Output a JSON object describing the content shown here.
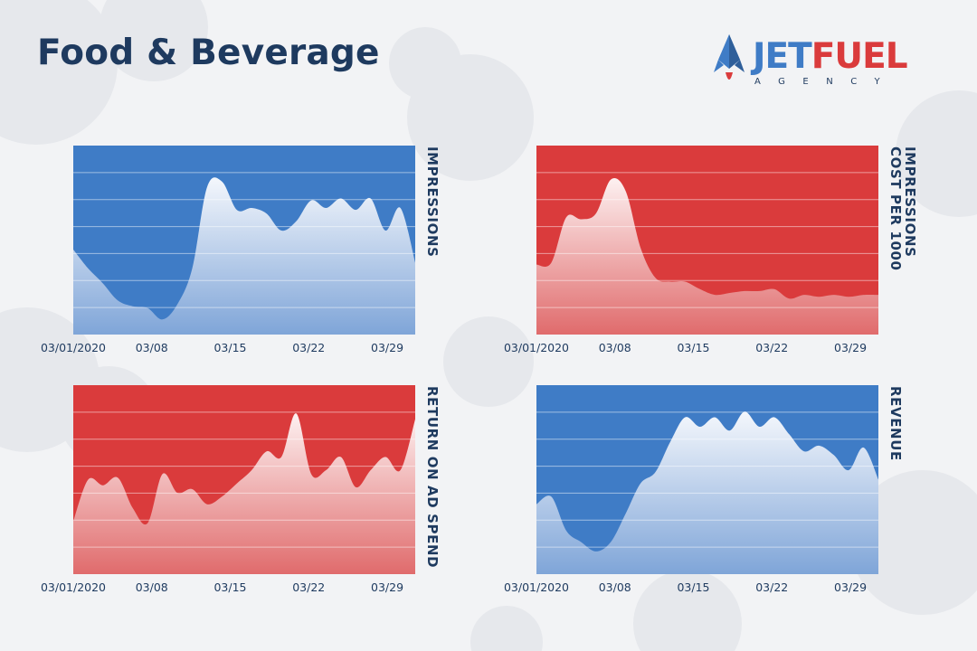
{
  "page": {
    "title": "Food & Beverage"
  },
  "logo": {
    "word_a": "JET",
    "word_b": "FUEL",
    "sub": "AGENCY",
    "colors": {
      "blue": "#3f7cc6",
      "red": "#da3b3c",
      "navy": "#1e3a5f"
    }
  },
  "chart_data": [
    {
      "type": "area",
      "ylabel": [
        "IMPRESSIONS"
      ],
      "theme": "blue",
      "x_ticks": [
        "03/01/2020",
        "03/08",
        "03/15",
        "03/22",
        "03/29"
      ],
      "y_range": [
        0,
        100
      ],
      "grid": true,
      "values": [
        45,
        35,
        27,
        18,
        15,
        14,
        8,
        16,
        35,
        78,
        81,
        66,
        67,
        64,
        55,
        60,
        71,
        67,
        72,
        66,
        72,
        55,
        67,
        38
      ]
    },
    {
      "type": "area",
      "ylabel": [
        "COST PER 1000",
        "IMPRESSIONS"
      ],
      "theme": "red",
      "x_ticks": [
        "03/01/2020",
        "03/08",
        "03/15",
        "03/22",
        "03/29"
      ],
      "y_range": [
        0,
        100
      ],
      "grid": true,
      "values": [
        37,
        38,
        62,
        61,
        64,
        82,
        76,
        46,
        30,
        28,
        28,
        24,
        21,
        22,
        23,
        23,
        24,
        19,
        21,
        20,
        21,
        20,
        21,
        21
      ]
    },
    {
      "type": "area",
      "ylabel": [
        "RETURN ON AD SPEND"
      ],
      "theme": "red",
      "x_ticks": [
        "03/01/2020",
        "03/08",
        "03/15",
        "03/22",
        "03/29"
      ],
      "y_range": [
        0,
        100
      ],
      "grid": true,
      "values": [
        28,
        50,
        47,
        51,
        35,
        27,
        53,
        43,
        45,
        37,
        41,
        48,
        55,
        65,
        62,
        85,
        53,
        55,
        62,
        46,
        55,
        62,
        55,
        82
      ]
    },
    {
      "type": "area",
      "ylabel": [
        "REVENUE"
      ],
      "theme": "blue",
      "x_ticks": [
        "03/01/2020",
        "03/08",
        "03/15",
        "03/22",
        "03/29"
      ],
      "y_range": [
        0,
        100
      ],
      "grid": true,
      "values": [
        37,
        41,
        23,
        17,
        12,
        17,
        32,
        48,
        54,
        70,
        83,
        78,
        83,
        76,
        86,
        78,
        83,
        74,
        65,
        68,
        63,
        55,
        67,
        50
      ]
    }
  ]
}
